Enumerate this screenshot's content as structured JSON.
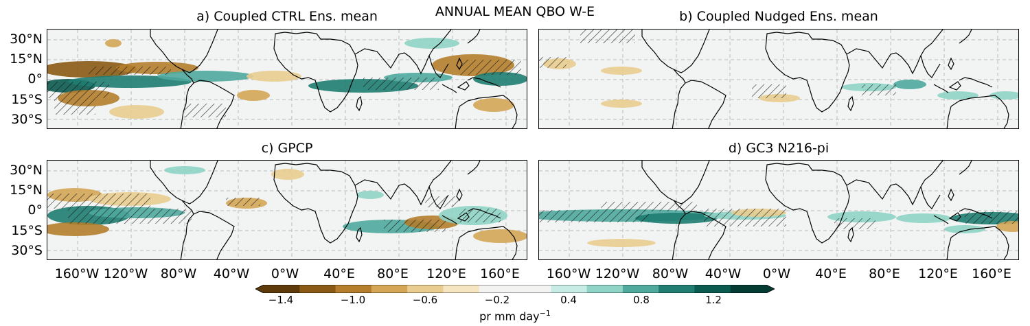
{
  "figure": {
    "suptitle": "ANNUAL MEAN QBO W-E",
    "panels": [
      {
        "title": "a) Coupled CTRL Ens. mean"
      },
      {
        "title": "b) Coupled Nudged Ens. mean"
      },
      {
        "title": "c) GPCP"
      },
      {
        "title": "d) GC3 N216-pi"
      }
    ],
    "lat_labels": [
      "30°N",
      "15°N",
      "0°",
      "15°S",
      "30°S"
    ],
    "lon_labels": [
      "160°W",
      "120°W",
      "80°W",
      "40°W",
      "0°W",
      "40°E",
      "80°E",
      "120°E",
      "160°E"
    ],
    "colorbar": {
      "ticks": [
        "−1.4",
        "−1.0",
        "−0.6",
        "−0.2",
        "0.4",
        "0.8",
        "1.2"
      ],
      "label_main": "pr mm day",
      "label_sup": "−1",
      "colors": [
        "#5e3a0a",
        "#8a5a14",
        "#b47e2c",
        "#d4a656",
        "#e9cd90",
        "#f5e5c0",
        "#f3f4f2",
        "#f3f4f2",
        "#c7ece5",
        "#8fd4c7",
        "#4fa99d",
        "#1f7d72",
        "#0b5a50",
        "#043b33"
      ]
    }
  }
}
